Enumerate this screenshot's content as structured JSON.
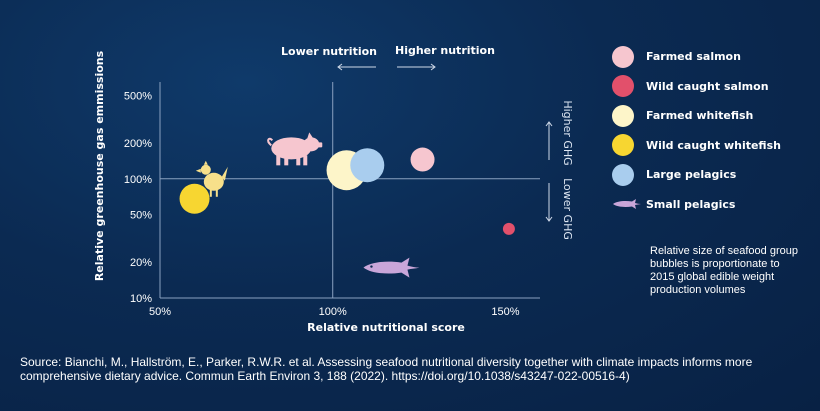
{
  "chart_data": {
    "type": "scatter",
    "xlabel": "Relative nutritional score",
    "ylabel": "Relative greenhouse gas emmissions",
    "x_scale": "linear",
    "y_scale": "log",
    "xlim": [
      50,
      160
    ],
    "ylim": [
      10,
      600
    ],
    "x_ticks": [
      {
        "value": 50,
        "label": "50%"
      },
      {
        "value": 100,
        "label": "100%"
      },
      {
        "value": 150,
        "label": "150%"
      }
    ],
    "y_ticks": [
      {
        "value": 500,
        "label": "500%"
      },
      {
        "value": 200,
        "label": "200%"
      },
      {
        "value": 100,
        "label": "100%"
      },
      {
        "value": 50,
        "label": "50%"
      },
      {
        "value": 20,
        "label": "20%"
      },
      {
        "value": 10,
        "label": "10%"
      }
    ],
    "reference_lines": {
      "x": 100,
      "y": 100
    },
    "direction_labels": {
      "lower_nutrition": "Lower nutrition",
      "higher_nutrition": "Higher nutrition",
      "higher_ghg": "Higher GHG",
      "lower_ghg": "Lower GHG"
    },
    "series": [
      {
        "name": "Farmed salmon",
        "color": "#f6c6cf",
        "marker": "bubble",
        "points": [
          {
            "x": 126,
            "y": 145,
            "size": 12
          }
        ]
      },
      {
        "name": "Wild caught salmon",
        "color": "#e2506b",
        "marker": "bubble",
        "points": [
          {
            "x": 151,
            "y": 38,
            "size": 6
          }
        ]
      },
      {
        "name": "Farmed whitefish",
        "color": "#fdf5c9",
        "marker": "bubble",
        "points": [
          {
            "x": 104,
            "y": 118,
            "size": 20
          }
        ]
      },
      {
        "name": "Wild caught whitefish",
        "color": "#f7d631",
        "marker": "bubble",
        "points": [
          {
            "x": 60,
            "y": 68,
            "size": 15
          }
        ]
      },
      {
        "name": "Large pelagics",
        "color": "#a9cdee",
        "marker": "bubble",
        "points": [
          {
            "x": 110,
            "y": 130,
            "size": 17
          }
        ]
      },
      {
        "name": "Small pelagics",
        "color": "#c9a6d9",
        "marker": "fish-icon",
        "points": [
          {
            "x": 117,
            "y": 18
          }
        ]
      }
    ],
    "icons": [
      {
        "name": "pig-icon",
        "color": "#f6c6cf",
        "x": 88,
        "y": 180
      },
      {
        "name": "chicken-icon",
        "color": "#f7e08a",
        "x": 65,
        "y": 100
      }
    ],
    "note": "Relative  size  of seafood group bubbles  is proportionate to 2015 global edible weight production  volumes"
  },
  "source_text": "Source: Bianchi, M., Hallström, E., Parker, R.W.R. et al. Assessing seafood nutritional diversity together with climate impacts informs more comprehensive dietary advice. Commun Earth Environ 3, 188 (2022). https://doi.org/10.1038/s43247-022-00516-4)"
}
